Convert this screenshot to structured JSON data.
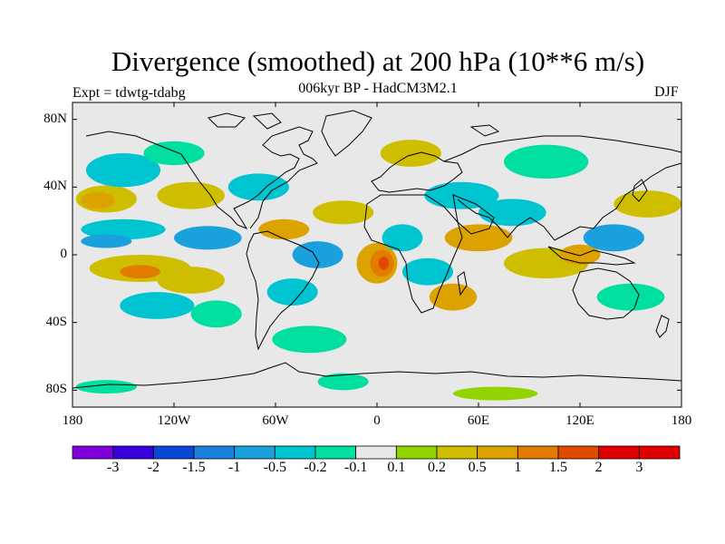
{
  "header": {
    "title": "Divergence (smoothed) at 200 hPa (10**6 m/s)",
    "subtitle": "006kyr BP - HadCM3M2.1",
    "experiment": "Expt = tdwtg-tdabg",
    "season": "DJF"
  },
  "map": {
    "projection": "cylindrical equidistant",
    "lat_range": [
      -90,
      90
    ],
    "lon_range": [
      -180,
      180
    ],
    "lat_ticks": [
      {
        "value": 80,
        "label": "80N"
      },
      {
        "value": 40,
        "label": "40N"
      },
      {
        "value": 0,
        "label": "0"
      },
      {
        "value": -40,
        "label": "40S"
      },
      {
        "value": -80,
        "label": "80S"
      }
    ],
    "lon_ticks": [
      {
        "value": -180,
        "label": "180"
      },
      {
        "value": -120,
        "label": "120W"
      },
      {
        "value": -60,
        "label": "60W"
      },
      {
        "value": 0,
        "label": "0"
      },
      {
        "value": 60,
        "label": "60E"
      },
      {
        "value": 120,
        "label": "120E"
      },
      {
        "value": 180,
        "label": "180"
      }
    ],
    "background_color": "#e8e8e8",
    "field_cells": [
      {
        "lon": -160,
        "lat": 33,
        "rx": 18,
        "ry": 8,
        "color": "#cfbe00"
      },
      {
        "lon": -165,
        "lat": 32,
        "rx": 10,
        "ry": 5,
        "color": "#dca200"
      },
      {
        "lon": -150,
        "lat": 15,
        "rx": 25,
        "ry": 6,
        "color": "#00c4d0"
      },
      {
        "lon": -160,
        "lat": 8,
        "rx": 15,
        "ry": 4,
        "color": "#1aa0dc"
      },
      {
        "lon": -140,
        "lat": -8,
        "rx": 30,
        "ry": 8,
        "color": "#cfbe00"
      },
      {
        "lon": -140,
        "lat": -10,
        "rx": 12,
        "ry": 4,
        "color": "#e27c00"
      },
      {
        "lon": -130,
        "lat": -30,
        "rx": 22,
        "ry": 8,
        "color": "#00c4d0"
      },
      {
        "lon": -150,
        "lat": 50,
        "rx": 22,
        "ry": 10,
        "color": "#00c4d0"
      },
      {
        "lon": -120,
        "lat": 60,
        "rx": 18,
        "ry": 7,
        "color": "#00dfa0"
      },
      {
        "lon": -110,
        "lat": 35,
        "rx": 20,
        "ry": 8,
        "color": "#cfbe00"
      },
      {
        "lon": -100,
        "lat": 10,
        "rx": 20,
        "ry": 7,
        "color": "#1aa0dc"
      },
      {
        "lon": -110,
        "lat": -15,
        "rx": 20,
        "ry": 8,
        "color": "#cfbe00"
      },
      {
        "lon": -95,
        "lat": -35,
        "rx": 15,
        "ry": 8,
        "color": "#00dfa0"
      },
      {
        "lon": -70,
        "lat": 40,
        "rx": 18,
        "ry": 8,
        "color": "#00c4d0"
      },
      {
        "lon": -55,
        "lat": 15,
        "rx": 15,
        "ry": 6,
        "color": "#dca200"
      },
      {
        "lon": -35,
        "lat": 0,
        "rx": 15,
        "ry": 8,
        "color": "#1aa0dc"
      },
      {
        "lon": -50,
        "lat": -22,
        "rx": 15,
        "ry": 8,
        "color": "#00c4d0"
      },
      {
        "lon": -40,
        "lat": -50,
        "rx": 22,
        "ry": 8,
        "color": "#00dfa0"
      },
      {
        "lon": -20,
        "lat": 25,
        "rx": 18,
        "ry": 7,
        "color": "#cfbe00"
      },
      {
        "lon": 0,
        "lat": -5,
        "rx": 12,
        "ry": 12,
        "color": "#dca200"
      },
      {
        "lon": 3,
        "lat": -5,
        "rx": 7,
        "ry": 8,
        "color": "#e27c00"
      },
      {
        "lon": 4,
        "lat": -5,
        "rx": 3,
        "ry": 4,
        "color": "#de4a00"
      },
      {
        "lon": 15,
        "lat": 10,
        "rx": 12,
        "ry": 8,
        "color": "#00c4d0"
      },
      {
        "lon": 30,
        "lat": -10,
        "rx": 15,
        "ry": 8,
        "color": "#00c4d0"
      },
      {
        "lon": 45,
        "lat": -25,
        "rx": 14,
        "ry": 8,
        "color": "#dca200"
      },
      {
        "lon": 50,
        "lat": 35,
        "rx": 22,
        "ry": 8,
        "color": "#00c4d0"
      },
      {
        "lon": 60,
        "lat": 10,
        "rx": 20,
        "ry": 8,
        "color": "#dca200"
      },
      {
        "lon": 80,
        "lat": 25,
        "rx": 20,
        "ry": 8,
        "color": "#00c4d0"
      },
      {
        "lon": 100,
        "lat": -5,
        "rx": 25,
        "ry": 9,
        "color": "#cfbe00"
      },
      {
        "lon": 120,
        "lat": 0,
        "rx": 12,
        "ry": 6,
        "color": "#dca200"
      },
      {
        "lon": 140,
        "lat": 10,
        "rx": 18,
        "ry": 8,
        "color": "#1aa0dc"
      },
      {
        "lon": 160,
        "lat": 30,
        "rx": 20,
        "ry": 8,
        "color": "#cfbe00"
      },
      {
        "lon": 150,
        "lat": -25,
        "rx": 20,
        "ry": 8,
        "color": "#00dfa0"
      },
      {
        "lon": 100,
        "lat": 55,
        "rx": 25,
        "ry": 10,
        "color": "#00dfa0"
      },
      {
        "lon": 20,
        "lat": 60,
        "rx": 18,
        "ry": 8,
        "color": "#cfbe00"
      },
      {
        "lon": -20,
        "lat": -75,
        "rx": 15,
        "ry": 5,
        "color": "#00dfa0"
      },
      {
        "lon": 70,
        "lat": -82,
        "rx": 25,
        "ry": 4,
        "color": "#92d400"
      },
      {
        "lon": -160,
        "lat": -78,
        "rx": 18,
        "ry": 4,
        "color": "#00dfa0"
      }
    ],
    "coastline_color": "#000000"
  },
  "colorbar": {
    "labels": [
      "-3",
      "-2",
      "-1.5",
      "-1",
      "-0.5",
      "-0.2",
      "-0.1",
      "0.1",
      "0.2",
      "0.5",
      "1",
      "1.5",
      "2",
      "3"
    ],
    "colors": [
      "#7f00dc",
      "#3700dc",
      "#0c46d4",
      "#1a82dc",
      "#1aa0dc",
      "#00c4d0",
      "#00dfa0",
      "#e8e8e8",
      "#92d400",
      "#cfbe00",
      "#dca200",
      "#e27c00",
      "#de4a00",
      "#e00000",
      "#e00000"
    ]
  }
}
